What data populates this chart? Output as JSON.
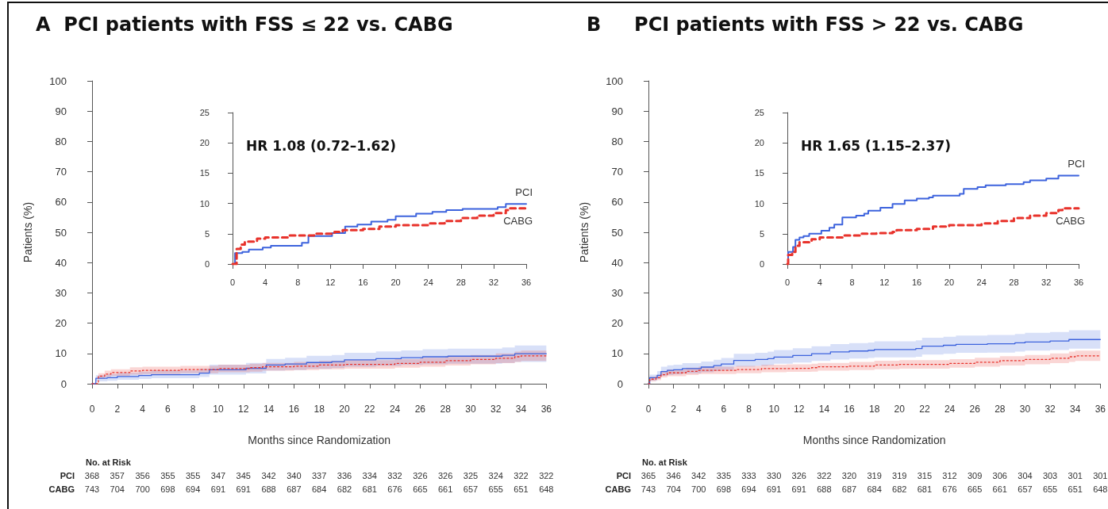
{
  "chart_data": [
    {
      "type": "step",
      "title": "A  PCI patients with FSS ≤ 22 vs. CABG",
      "xlabel": "Months since Randomization",
      "ylabel": "Patients (%)",
      "xlim": [
        0,
        36
      ],
      "xticks": [
        0,
        2,
        4,
        6,
        8,
        10,
        12,
        14,
        16,
        18,
        20,
        22,
        24,
        26,
        28,
        30,
        32,
        34,
        36
      ],
      "ylim": [
        0,
        100
      ],
      "yticks": [
        0,
        10,
        20,
        30,
        40,
        50,
        60,
        70,
        80,
        90,
        100
      ],
      "grid": false,
      "legend": false,
      "marker": "none",
      "series": [
        {
          "color": "#3d63dd",
          "line_style": "solid",
          "x": [
            0,
            0.3,
            1.2,
            2,
            3.7,
            4.7,
            8.5,
            9.3,
            12.2,
            13.8,
            15.3,
            17,
            19,
            20,
            22.5,
            24.5,
            26.2,
            28.2,
            32.5,
            33.5,
            36
          ],
          "values": [
            0,
            1.8,
            2.0,
            2.4,
            2.7,
            3.0,
            3.5,
            4.6,
            5.1,
            6.2,
            6.5,
            7.0,
            7.3,
            7.9,
            8.3,
            8.6,
            8.9,
            9.1,
            9.4,
            9.9,
            9.9
          ],
          "lower": [
            0,
            0.8,
            1.0,
            1.3,
            1.6,
            1.8,
            2.2,
            3.0,
            3.4,
            4.3,
            4.5,
            4.9,
            5.2,
            5.6,
            5.9,
            6.2,
            6.4,
            6.6,
            6.9,
            7.2,
            7.2
          ],
          "upper": [
            0,
            2.8,
            3.2,
            3.6,
            4.0,
            4.4,
            5.0,
            6.3,
            6.9,
            8.2,
            8.6,
            9.2,
            9.5,
            10.2,
            10.7,
            11.0,
            11.4,
            11.6,
            12.0,
            12.6,
            12.6
          ]
        },
        {
          "color": "#e8322b",
          "line_style": "dotted",
          "x": [
            0,
            0.5,
            1,
            1.5,
            3,
            4,
            7,
            10,
            12.5,
            13.5,
            16,
            18,
            20,
            24,
            26,
            28,
            30,
            32,
            33.5,
            34,
            36
          ],
          "values": [
            0,
            2.5,
            3.2,
            3.7,
            4.2,
            4.4,
            4.7,
            5.0,
            5.3,
            5.6,
            5.8,
            6.2,
            6.4,
            6.7,
            7.1,
            7.6,
            8.0,
            8.4,
            8.9,
            9.2,
            9.2
          ],
          "lower": [
            0,
            1.6,
            2.2,
            2.6,
            3.0,
            3.2,
            3.5,
            3.8,
            4.0,
            4.3,
            4.5,
            4.8,
            5.0,
            5.3,
            5.6,
            6.0,
            6.4,
            6.8,
            7.2,
            7.5,
            7.5
          ],
          "upper": [
            0,
            3.5,
            4.3,
            4.8,
            5.4,
            5.6,
            5.9,
            6.3,
            6.6,
            6.9,
            7.2,
            7.6,
            7.8,
            8.1,
            8.6,
            9.1,
            9.5,
            10.0,
            10.6,
            10.9,
            10.9
          ]
        }
      ],
      "annotations": [
        "No. at Risk",
        "PCI 368 357 356 355 355 347 345 342 340 337 336 334 332 326 326 325 324 322 322",
        "CABG 743 704 700 698 694 691 691 688 687 684 682 681 676 665 661 657 655 651 648"
      ]
    },
    {
      "type": "step",
      "xlim": [
        0,
        36
      ],
      "xticks": [
        0,
        4,
        8,
        12,
        16,
        20,
        24,
        28,
        32,
        36
      ],
      "ylim": [
        0,
        25
      ],
      "yticks": [
        0,
        5,
        10,
        15,
        20,
        25
      ],
      "grid": false,
      "legend": false,
      "marker": "none",
      "series": [
        {
          "name": "PCI",
          "color": "#3d63dd",
          "line_style": "solid",
          "x": [
            0,
            0.3,
            1.2,
            2,
            3.7,
            4.7,
            8.5,
            9.3,
            12.2,
            13.8,
            15.3,
            17,
            19,
            20,
            22.5,
            24.5,
            26.2,
            28.2,
            32.5,
            33.5,
            36
          ],
          "values": [
            0,
            1.8,
            2.0,
            2.4,
            2.7,
            3.0,
            3.5,
            4.6,
            5.1,
            6.2,
            6.5,
            7.0,
            7.3,
            7.9,
            8.3,
            8.6,
            8.9,
            9.1,
            9.4,
            9.9,
            9.9
          ]
        },
        {
          "name": "CABG",
          "color": "#e8322b",
          "line_style": "dashed",
          "x": [
            0,
            0.5,
            1,
            1.5,
            3,
            4,
            7,
            10,
            12.5,
            13.5,
            16,
            18,
            20,
            24,
            26,
            28,
            30,
            32,
            33.5,
            34,
            36
          ],
          "values": [
            0,
            2.5,
            3.2,
            3.7,
            4.2,
            4.4,
            4.7,
            5.0,
            5.3,
            5.6,
            5.8,
            6.2,
            6.4,
            6.7,
            7.1,
            7.6,
            8.0,
            8.4,
            8.9,
            9.2,
            9.2
          ]
        }
      ],
      "annotations": [
        "HR 1.08 (0.72–1.62)"
      ]
    },
    {
      "type": "step",
      "title": "B     PCI patients with FSS > 22 vs. CABG",
      "xlabel": "Months since Randomization",
      "ylabel": "Patients (%)",
      "xlim": [
        0,
        36
      ],
      "xticks": [
        0,
        2,
        4,
        6,
        8,
        10,
        12,
        14,
        16,
        18,
        20,
        22,
        24,
        26,
        28,
        30,
        32,
        34,
        36
      ],
      "ylim": [
        0,
        100
      ],
      "yticks": [
        0,
        10,
        20,
        30,
        40,
        50,
        60,
        70,
        80,
        90,
        100
      ],
      "grid": false,
      "legend": false,
      "marker": "none",
      "series": [
        {
          "color": "#3d63dd",
          "line_style": "solid",
          "x": [
            0,
            0.1,
            0.7,
            1,
            1.5,
            2,
            2.7,
            4.2,
            5.2,
            5.8,
            6.8,
            8.5,
            9.5,
            10,
            11.5,
            13,
            14.5,
            16,
            17.5,
            18,
            21.3,
            21.8,
            23.5,
            24.5,
            27,
            29.2,
            30,
            32,
            33.5,
            36
          ],
          "values": [
            0,
            2.0,
            2.8,
            4.0,
            4.4,
            4.6,
            5.0,
            5.5,
            6.0,
            6.5,
            7.7,
            8.0,
            8.3,
            8.8,
            9.3,
            9.9,
            10.5,
            10.8,
            11.0,
            11.3,
            11.6,
            12.4,
            12.7,
            13.0,
            13.2,
            13.5,
            13.8,
            14.1,
            14.6,
            14.6
          ],
          "lower": [
            0,
            1.0,
            1.6,
            2.6,
            2.9,
            3.1,
            3.4,
            3.8,
            4.2,
            4.6,
            5.6,
            5.9,
            6.1,
            6.6,
            7.0,
            7.5,
            8.0,
            8.3,
            8.5,
            8.7,
            8.9,
            9.6,
            9.9,
            10.2,
            10.3,
            10.6,
            10.9,
            11.1,
            11.6,
            11.6
          ],
          "upper": [
            0,
            3.0,
            4.2,
            5.6,
            6.1,
            6.3,
            6.8,
            7.3,
            7.9,
            8.5,
            9.9,
            10.2,
            10.6,
            11.1,
            11.7,
            12.4,
            13.1,
            13.4,
            13.6,
            14.0,
            14.3,
            15.2,
            15.5,
            15.9,
            16.1,
            16.4,
            16.8,
            17.1,
            17.7,
            17.7
          ]
        },
        {
          "color": "#e8322b",
          "line_style": "dotted",
          "x": [
            0,
            0.1,
            0.6,
            1,
            1.5,
            3,
            4,
            7,
            9,
            11,
            13,
            13.5,
            16,
            18,
            20,
            24,
            26,
            28,
            30,
            32,
            33.5,
            34,
            36
          ],
          "values": [
            0,
            1.5,
            2.0,
            3.0,
            3.6,
            4.1,
            4.4,
            4.7,
            5.0,
            5.1,
            5.3,
            5.6,
            5.8,
            6.2,
            6.4,
            6.7,
            7.1,
            7.6,
            8.0,
            8.4,
            8.9,
            9.2,
            9.2
          ],
          "lower": [
            0,
            0.8,
            1.2,
            2.1,
            2.5,
            2.9,
            3.2,
            3.5,
            3.8,
            3.9,
            4.0,
            4.3,
            4.5,
            4.8,
            5.0,
            5.3,
            5.6,
            6.0,
            6.4,
            6.8,
            7.2,
            7.5,
            7.5
          ],
          "upper": [
            0,
            2.3,
            2.9,
            4.0,
            4.7,
            5.3,
            5.6,
            5.9,
            6.3,
            6.4,
            6.6,
            6.9,
            7.2,
            7.6,
            7.8,
            8.1,
            8.6,
            9.1,
            9.5,
            10.0,
            10.6,
            10.9,
            10.9
          ]
        }
      ],
      "annotations": [
        "No. at Risk",
        "PCI 365 346 342 335 333 330 326 322 320 319 319 315 312 309 306 304 303 301 301",
        "CABG 743 704 700 698 694 691 691 688 687 684 682 681 676 665 661 657 655 651 648"
      ]
    },
    {
      "type": "step",
      "xlim": [
        0,
        36
      ],
      "xticks": [
        0,
        4,
        8,
        12,
        16,
        20,
        24,
        28,
        32,
        36
      ],
      "ylim": [
        0,
        25
      ],
      "yticks": [
        0,
        5,
        10,
        15,
        20,
        25
      ],
      "grid": false,
      "legend": false,
      "marker": "none",
      "series": [
        {
          "name": "PCI",
          "color": "#3d63dd",
          "line_style": "solid",
          "x": [
            0,
            0.1,
            0.7,
            1,
            1.5,
            2,
            2.7,
            4.2,
            5.2,
            5.8,
            6.8,
            8.5,
            9.5,
            10,
            11.5,
            13,
            14.5,
            16,
            17.5,
            18,
            21.3,
            21.8,
            23.5,
            24.5,
            27,
            29.2,
            30,
            32,
            33.5,
            36
          ],
          "values": [
            0,
            2.0,
            2.8,
            4.0,
            4.4,
            4.6,
            5.0,
            5.5,
            6.0,
            6.5,
            7.7,
            8.0,
            8.3,
            8.8,
            9.3,
            9.9,
            10.5,
            10.8,
            11.0,
            11.3,
            11.6,
            12.4,
            12.7,
            13.0,
            13.2,
            13.5,
            13.8,
            14.1,
            14.6,
            14.6
          ]
        },
        {
          "name": "CABG",
          "color": "#e8322b",
          "line_style": "dashed",
          "x": [
            0,
            0.1,
            0.6,
            1,
            1.5,
            3,
            4,
            7,
            9,
            11,
            13,
            13.5,
            16,
            18,
            20,
            24,
            26,
            28,
            30,
            32,
            33.5,
            34,
            36
          ],
          "values": [
            0,
            1.5,
            2.0,
            3.0,
            3.6,
            4.1,
            4.4,
            4.7,
            5.0,
            5.1,
            5.3,
            5.6,
            5.8,
            6.2,
            6.4,
            6.7,
            7.1,
            7.6,
            8.0,
            8.4,
            8.9,
            9.2,
            9.2
          ]
        }
      ],
      "annotations": [
        "HR 1.65 (1.15–2.37)"
      ]
    }
  ]
}
